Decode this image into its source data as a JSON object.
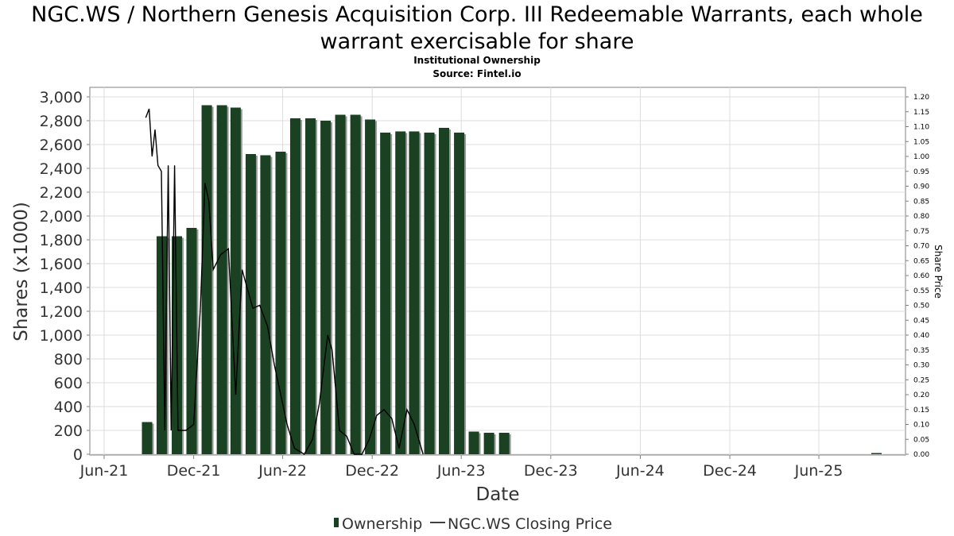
{
  "title": "NGC.WS / Northern Genesis Acquisition Corp. III Redeemable Warrants, each whole warrant exercisable for share",
  "subtitle": "Institutional Ownership",
  "source": "Source: Fintel.io",
  "colors": {
    "bar": "#1a4122",
    "bar_shadow": "#9a9a9a",
    "line": "#000000",
    "grid": "#dcdcdc"
  },
  "chart_data": {
    "type": "bar",
    "xlabel": "Date",
    "ylabel": "Shares (x1000)",
    "y2label": "Share Price",
    "ylim": [
      0,
      3000
    ],
    "y2lim": [
      0,
      1.2
    ],
    "grid": true,
    "legend_position": "bottom",
    "x_range": [
      "2021-05-01",
      "2025-12-31"
    ],
    "x_ticks": [
      {
        "label": "Jun-21",
        "date": "2021-06-01"
      },
      {
        "label": "Dec-21",
        "date": "2021-12-01"
      },
      {
        "label": "Jun-22",
        "date": "2022-06-01"
      },
      {
        "label": "Dec-22",
        "date": "2022-12-01"
      },
      {
        "label": "Jun-23",
        "date": "2023-06-01"
      },
      {
        "label": "Dec-23",
        "date": "2023-12-01"
      },
      {
        "label": "Jun-24",
        "date": "2024-06-01"
      },
      {
        "label": "Dec-24",
        "date": "2024-12-01"
      },
      {
        "label": "Jun-25",
        "date": "2025-06-01"
      }
    ],
    "y_ticks": [
      0,
      200,
      400,
      600,
      800,
      1000,
      1200,
      1400,
      1600,
      1800,
      2000,
      2200,
      2400,
      2600,
      2800,
      3000
    ],
    "y_tick_labels": [
      "0",
      "200",
      "400",
      "600",
      "800",
      "1,000",
      "1,200",
      "1,400",
      "1,600",
      "1,800",
      "2,000",
      "2,200",
      "2,400",
      "2,600",
      "2,800",
      "3,000"
    ],
    "y2_ticks": [
      "0.00",
      "0.05",
      "0.10",
      "0.15",
      "0.20",
      "0.25",
      "0.30",
      "0.35",
      "0.40",
      "0.45",
      "0.50",
      "0.55",
      "0.60",
      "0.65",
      "0.70",
      "0.75",
      "0.80",
      "0.85",
      "0.90",
      "0.95",
      "1.00",
      "1.05",
      "1.10",
      "1.15",
      "1.20"
    ],
    "series": [
      {
        "name": "Ownership",
        "kind": "bar",
        "points": [
          {
            "date": "2021-08-31",
            "value": 270
          },
          {
            "date": "2021-09-30",
            "value": 1830
          },
          {
            "date": "2021-10-31",
            "value": 1830
          },
          {
            "date": "2021-11-30",
            "value": 1900
          },
          {
            "date": "2021-12-31",
            "value": 2930
          },
          {
            "date": "2022-01-31",
            "value": 2930
          },
          {
            "date": "2022-02-28",
            "value": 2910
          },
          {
            "date": "2022-03-31",
            "value": 2520
          },
          {
            "date": "2022-04-30",
            "value": 2510
          },
          {
            "date": "2022-05-31",
            "value": 2540
          },
          {
            "date": "2022-06-30",
            "value": 2820
          },
          {
            "date": "2022-07-31",
            "value": 2820
          },
          {
            "date": "2022-08-31",
            "value": 2800
          },
          {
            "date": "2022-09-30",
            "value": 2850
          },
          {
            "date": "2022-10-31",
            "value": 2850
          },
          {
            "date": "2022-11-30",
            "value": 2810
          },
          {
            "date": "2022-12-31",
            "value": 2700
          },
          {
            "date": "2023-01-31",
            "value": 2710
          },
          {
            "date": "2023-02-28",
            "value": 2710
          },
          {
            "date": "2023-03-31",
            "value": 2700
          },
          {
            "date": "2023-04-30",
            "value": 2740
          },
          {
            "date": "2023-05-31",
            "value": 2700
          },
          {
            "date": "2023-06-30",
            "value": 190
          },
          {
            "date": "2023-07-31",
            "value": 180
          },
          {
            "date": "2023-08-31",
            "value": 180
          },
          {
            "date": "2025-09-30",
            "value": 10
          }
        ]
      },
      {
        "name": "NGC.WS Closing Price",
        "kind": "line",
        "points": [
          {
            "date": "2021-08-25",
            "value": 1.13
          },
          {
            "date": "2021-09-01",
            "value": 1.16
          },
          {
            "date": "2021-09-07",
            "value": 1.0
          },
          {
            "date": "2021-09-13",
            "value": 1.09
          },
          {
            "date": "2021-09-19",
            "value": 0.97
          },
          {
            "date": "2021-09-26",
            "value": 0.95
          },
          {
            "date": "2021-10-03",
            "value": 0.08
          },
          {
            "date": "2021-10-10",
            "value": 0.97
          },
          {
            "date": "2021-10-16",
            "value": 0.08
          },
          {
            "date": "2021-10-23",
            "value": 0.97
          },
          {
            "date": "2021-10-30",
            "value": 0.08
          },
          {
            "date": "2021-11-15",
            "value": 0.08
          },
          {
            "date": "2021-12-01",
            "value": 0.1
          },
          {
            "date": "2021-12-15",
            "value": 0.5
          },
          {
            "date": "2021-12-24",
            "value": 0.91
          },
          {
            "date": "2022-01-01",
            "value": 0.85
          },
          {
            "date": "2022-01-10",
            "value": 0.62
          },
          {
            "date": "2022-01-25",
            "value": 0.67
          },
          {
            "date": "2022-02-10",
            "value": 0.69
          },
          {
            "date": "2022-02-25",
            "value": 0.2
          },
          {
            "date": "2022-03-10",
            "value": 0.62
          },
          {
            "date": "2022-03-20",
            "value": 0.56
          },
          {
            "date": "2022-04-01",
            "value": 0.49
          },
          {
            "date": "2022-04-15",
            "value": 0.5
          },
          {
            "date": "2022-05-01",
            "value": 0.43
          },
          {
            "date": "2022-05-15",
            "value": 0.3
          },
          {
            "date": "2022-06-10",
            "value": 0.1
          },
          {
            "date": "2022-06-25",
            "value": 0.02
          },
          {
            "date": "2022-07-15",
            "value": 0.0
          },
          {
            "date": "2022-08-01",
            "value": 0.05
          },
          {
            "date": "2022-08-15",
            "value": 0.17
          },
          {
            "date": "2022-09-01",
            "value": 0.4
          },
          {
            "date": "2022-09-10",
            "value": 0.35
          },
          {
            "date": "2022-09-25",
            "value": 0.08
          },
          {
            "date": "2022-10-10",
            "value": 0.06
          },
          {
            "date": "2022-10-25",
            "value": 0.0
          },
          {
            "date": "2022-11-10",
            "value": 0.0
          },
          {
            "date": "2022-11-25",
            "value": 0.05
          },
          {
            "date": "2022-12-10",
            "value": 0.13
          },
          {
            "date": "2022-12-25",
            "value": 0.15
          },
          {
            "date": "2023-01-10",
            "value": 0.12
          },
          {
            "date": "2023-01-25",
            "value": 0.02
          },
          {
            "date": "2023-02-10",
            "value": 0.15
          },
          {
            "date": "2023-02-25",
            "value": 0.1
          },
          {
            "date": "2023-03-15",
            "value": 0.0
          }
        ]
      }
    ]
  }
}
